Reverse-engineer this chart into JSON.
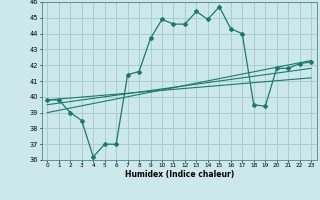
{
  "xlabel": "Humidex (Indice chaleur)",
  "x_ticks": [
    0,
    1,
    2,
    3,
    4,
    5,
    6,
    7,
    8,
    9,
    10,
    11,
    12,
    13,
    14,
    15,
    16,
    17,
    18,
    19,
    20,
    21,
    22,
    23
  ],
  "ylim": [
    36,
    46
  ],
  "xlim": [
    -0.5,
    23.5
  ],
  "yticks": [
    36,
    37,
    38,
    39,
    40,
    41,
    42,
    43,
    44,
    45,
    46
  ],
  "background_color": "#cce8ea",
  "grid_color": "#aacdd0",
  "line_color": "#1a7a6e",
  "series1_x": [
    0,
    1,
    2,
    3,
    4,
    5,
    6,
    7,
    8,
    9,
    10,
    11,
    12,
    13,
    14,
    15,
    16,
    17,
    18,
    19,
    20,
    21,
    22,
    23
  ],
  "series1_y": [
    39.8,
    39.8,
    39.0,
    38.5,
    36.2,
    37.0,
    37.0,
    41.4,
    41.6,
    43.7,
    44.9,
    44.6,
    44.6,
    45.4,
    44.9,
    45.7,
    44.3,
    44.0,
    39.5,
    39.4,
    41.8,
    41.8,
    42.1,
    42.2
  ],
  "series2_x": [
    0,
    23
  ],
  "series2_y": [
    39.5,
    41.8
  ],
  "series3_x": [
    0,
    23
  ],
  "series3_y": [
    39.0,
    42.3
  ],
  "series4_x": [
    0,
    23
  ],
  "series4_y": [
    39.8,
    41.2
  ]
}
